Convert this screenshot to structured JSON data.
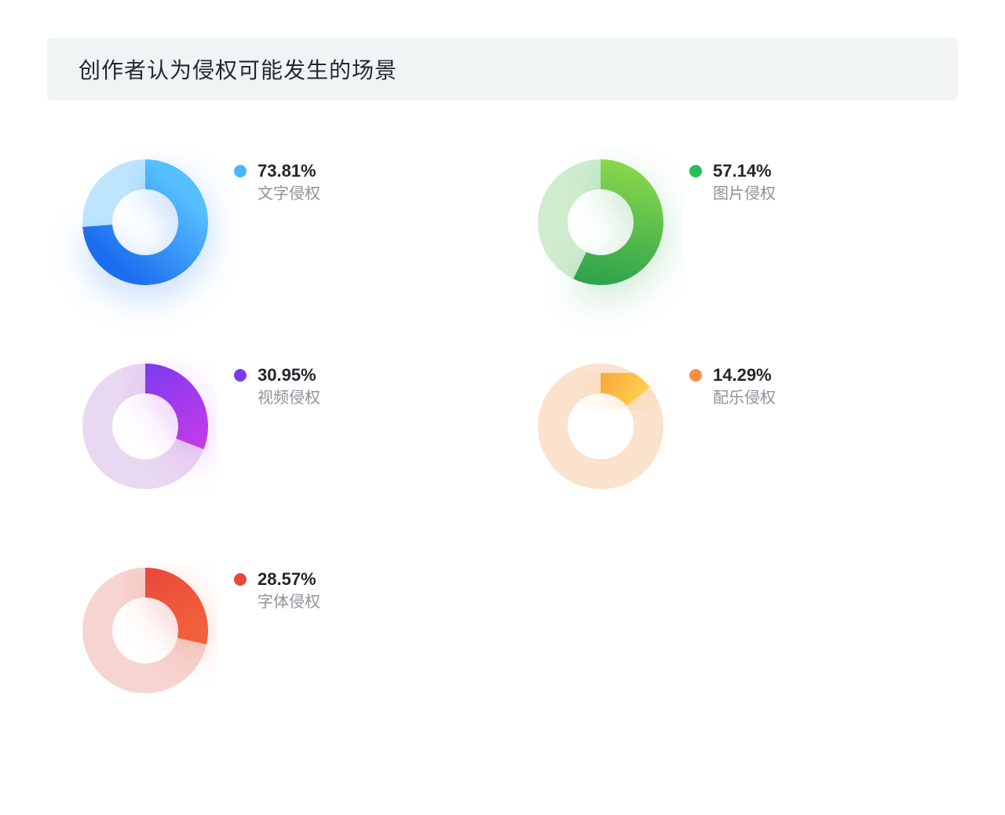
{
  "title": "创作者认为侵权可能发生的场景",
  "title_bg": "#f1f4f5",
  "title_color": "#24292f",
  "pct_color": "#23262b",
  "label_color": "#8e9299",
  "donut": {
    "outer_r": 80,
    "inner_r": 42,
    "stroke_w": 38,
    "shadow_opacity": 0.28,
    "shadow_blur": 22,
    "shadow_dy": 14
  },
  "items": [
    {
      "percent_label": "73.81%",
      "label": "文字侵权",
      "percent": 73.81,
      "dot_color": "#49b7ff",
      "bg_color": "#bfe6ff",
      "grad_start": "#56c0ff",
      "grad_end": "#1e6ef0",
      "shadow_color": "#1e6ef0"
    },
    {
      "percent_label": "57.14%",
      "label": "图片侵权",
      "percent": 57.14,
      "dot_color": "#2bbd5a",
      "bg_color": "#cfeccf",
      "grad_start": "#8bd84c",
      "grad_end": "#2aa14d",
      "shadow_color": "#2aa14d"
    },
    {
      "percent_label": "30.95%",
      "label": "视频侵权",
      "percent": 30.95,
      "dot_color": "#7a3bf0",
      "bg_color": "#e9d8f2",
      "grad_start": "#7a3bf0",
      "grad_end": "#c93ae8",
      "shadow_color": "#b03ae8"
    },
    {
      "percent_label": "14.29%",
      "label": "配乐侵权",
      "percent": 14.29,
      "dot_color": "#fb8b4b",
      "bg_color": "#fbe2cc",
      "grad_start": "#f6a33a",
      "grad_end": "#ffd24c",
      "shadow_color": "#f6a33a"
    },
    {
      "percent_label": "28.57%",
      "label": "字体侵权",
      "percent": 28.57,
      "dot_color": "#e9483b",
      "bg_color": "#f6d4cf",
      "grad_start": "#e9483b",
      "grad_end": "#f3663a",
      "shadow_color": "#e9483b"
    }
  ]
}
